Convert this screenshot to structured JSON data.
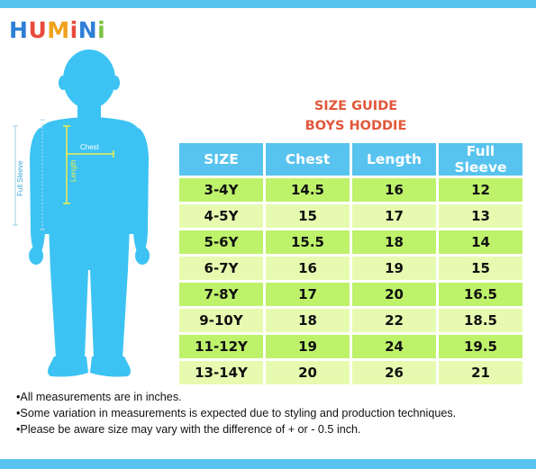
{
  "brand": {
    "letters": [
      {
        "ch": "H",
        "color": "#2e7fd6"
      },
      {
        "ch": "U",
        "color": "#e74a3c"
      },
      {
        "ch": "M",
        "color": "#f0a21b"
      },
      {
        "ch": "i",
        "color": "#e74a3c"
      },
      {
        "ch": "N",
        "color": "#2e7fd6"
      },
      {
        "ch": "i",
        "color": "#7cc242"
      }
    ]
  },
  "figure": {
    "chest_label": "Chest",
    "length_label": "Length",
    "sleeve_label": "Full Sleeve",
    "body_color": "#3cc3f3",
    "marker_color": "#f0ec4c",
    "sleeve_line_color": "#b8d8e8"
  },
  "guide": {
    "title": "SIZE GUIDE",
    "subtitle": "BOYS HODDIE"
  },
  "table": {
    "headers": [
      "SIZE",
      "Chest",
      "Length",
      "Full Sleeve"
    ],
    "rows": [
      [
        "3-4Y",
        "14.5",
        "16",
        "12"
      ],
      [
        "4-5Y",
        "15",
        "17",
        "13"
      ],
      [
        "5-6Y",
        "15.5",
        "18",
        "14"
      ],
      [
        "6-7Y",
        "16",
        "19",
        "15"
      ],
      [
        "7-8Y",
        "17",
        "20",
        "16.5"
      ],
      [
        "9-10Y",
        "18",
        "22",
        "18.5"
      ],
      [
        "11-12Y",
        "19",
        "24",
        "19.5"
      ],
      [
        "13-14Y",
        "20",
        "26",
        "21"
      ]
    ],
    "header_color": "#57c3ee",
    "row_colors": [
      "#bef26b",
      "#e7fbb0"
    ]
  },
  "notes": [
    "All measurements are in inches.",
    "Some variation in measurements is expected due to styling and production techniques.",
    "Please be aware size may vary with the difference of + or - 0.5 inch."
  ],
  "bullet": "•"
}
